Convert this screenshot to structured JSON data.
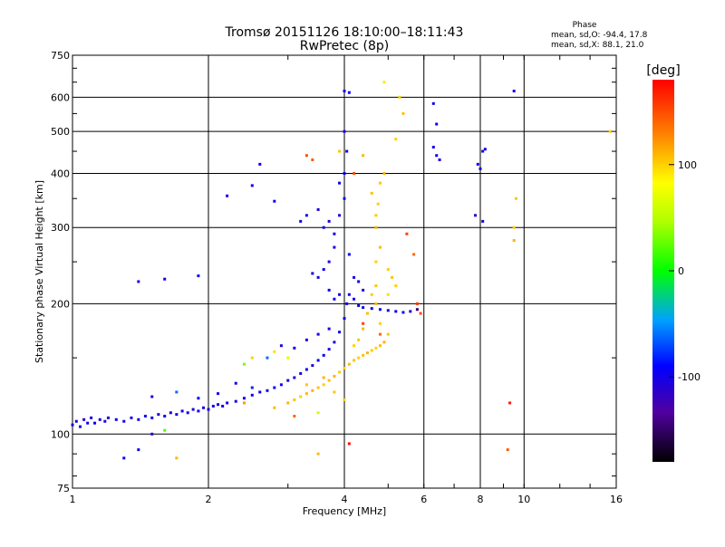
{
  "chart_data": {
    "type": "scatter",
    "title": "Tromsø 20151126 18:10:00–18:11:43",
    "subtitle": "RwPretec (8p)",
    "xlabel": "Frequency [MHz]",
    "ylabel": "Stationary phase Virtual Height [km]",
    "x_scale": "log",
    "y_scale": "log",
    "xlim": [
      1,
      16
    ],
    "ylim": [
      75,
      750
    ],
    "x_ticks": [
      1,
      2,
      4,
      6,
      8,
      10,
      16
    ],
    "y_ticks": [
      75,
      100,
      200,
      300,
      400,
      500,
      600,
      750
    ],
    "grid": true,
    "stats": {
      "title": "Phase",
      "line_o": "mean, sd,O: -94.4, 17.8",
      "line_x": "mean, sd,X:  88.1, 21.0"
    },
    "colorbar": {
      "label": "[deg]",
      "range": [
        -180,
        180
      ],
      "ticks": [
        -100,
        0,
        100
      ]
    },
    "series": [
      {
        "points": [
          [
            1.0,
            105,
            -100
          ],
          [
            1.02,
            107,
            -95
          ],
          [
            1.04,
            104,
            -105
          ],
          [
            1.06,
            108,
            -110
          ],
          [
            1.08,
            106,
            -98
          ],
          [
            1.1,
            109,
            -102
          ],
          [
            1.12,
            106,
            -92
          ],
          [
            1.15,
            108,
            -100
          ],
          [
            1.18,
            107,
            -105
          ],
          [
            1.2,
            109,
            -110
          ],
          [
            1.25,
            108,
            -95
          ],
          [
            1.3,
            107,
            -100
          ],
          [
            1.35,
            109,
            -103
          ],
          [
            1.4,
            108,
            -98
          ],
          [
            1.45,
            110,
            -101
          ],
          [
            1.5,
            109,
            -96
          ],
          [
            1.55,
            111,
            -105
          ],
          [
            1.6,
            110,
            -99
          ],
          [
            1.65,
            112,
            -104
          ],
          [
            1.7,
            111,
            -100
          ],
          [
            1.75,
            113,
            -97
          ],
          [
            1.8,
            112,
            -102
          ],
          [
            1.85,
            114,
            -106
          ],
          [
            1.9,
            113,
            -99
          ],
          [
            1.95,
            115,
            -101
          ],
          [
            2.0,
            114,
            -103
          ],
          [
            2.05,
            116,
            -98
          ],
          [
            2.1,
            117,
            -104
          ],
          [
            2.15,
            116,
            -96
          ],
          [
            2.2,
            118,
            -100
          ],
          [
            2.3,
            119,
            -102
          ],
          [
            2.4,
            121,
            -99
          ],
          [
            2.5,
            123,
            -104
          ],
          [
            2.6,
            125,
            -97
          ],
          [
            2.7,
            126,
            -101
          ],
          [
            2.8,
            128,
            -95
          ],
          [
            2.9,
            130,
            -103
          ],
          [
            3.0,
            133,
            -99
          ],
          [
            3.1,
            135,
            -102
          ],
          [
            3.2,
            138,
            -100
          ],
          [
            3.3,
            141,
            -98
          ],
          [
            3.4,
            144,
            -104
          ],
          [
            3.5,
            148,
            -101
          ],
          [
            3.6,
            152,
            -97
          ],
          [
            3.7,
            157,
            -103
          ],
          [
            3.8,
            163,
            -99
          ],
          [
            3.9,
            172,
            -102
          ],
          [
            4.0,
            185,
            -100
          ],
          [
            4.05,
            200,
            -96
          ],
          [
            4.1,
            210,
            -105
          ],
          [
            4.2,
            205,
            -100
          ],
          [
            4.3,
            198,
            -98
          ],
          [
            4.4,
            196,
            -102
          ],
          [
            4.6,
            195,
            -99
          ],
          [
            4.8,
            194,
            -101
          ],
          [
            5.0,
            193,
            -104
          ],
          [
            5.2,
            192,
            -100
          ],
          [
            5.4,
            191,
            -97
          ],
          [
            5.6,
            192,
            -110
          ],
          [
            5.8,
            194,
            -150
          ],
          [
            1.5,
            122,
            -110
          ],
          [
            1.7,
            125,
            -60
          ],
          [
            1.9,
            121,
            -90
          ],
          [
            2.1,
            124,
            -100
          ],
          [
            2.3,
            131,
            -95
          ],
          [
            2.5,
            128,
            -80
          ],
          [
            2.7,
            150,
            -60
          ],
          [
            2.9,
            160,
            -105
          ],
          [
            3.1,
            158,
            -100
          ],
          [
            3.3,
            165,
            -98
          ],
          [
            3.5,
            170,
            -102
          ],
          [
            3.7,
            175,
            -99
          ],
          [
            3.6,
            300,
            -100
          ],
          [
            3.7,
            310,
            -105
          ],
          [
            3.8,
            290,
            -98
          ],
          [
            3.9,
            320,
            -110
          ],
          [
            4.0,
            350,
            -100
          ],
          [
            4.0,
            400,
            -95
          ],
          [
            4.05,
            450,
            -103
          ],
          [
            4.0,
            500,
            -101
          ],
          [
            3.9,
            380,
            -99
          ],
          [
            3.8,
            270,
            -100
          ],
          [
            3.7,
            250,
            -104
          ],
          [
            3.6,
            240,
            -97
          ],
          [
            3.5,
            230,
            -100
          ],
          [
            3.4,
            235,
            -102
          ],
          [
            3.3,
            320,
            -99
          ],
          [
            3.5,
            330,
            -105
          ],
          [
            3.2,
            310,
            -100
          ],
          [
            4.1,
            260,
            -96
          ],
          [
            4.2,
            230,
            -100
          ],
          [
            4.3,
            225,
            -98
          ],
          [
            4.4,
            215,
            -103
          ],
          [
            3.9,
            210,
            -100
          ],
          [
            3.8,
            205,
            -99
          ],
          [
            3.7,
            215,
            -101
          ],
          [
            6.3,
            460,
            -100
          ],
          [
            6.4,
            440,
            -96
          ],
          [
            6.5,
            430,
            -104
          ],
          [
            6.3,
            580,
            -100
          ],
          [
            6.4,
            520,
            -98
          ],
          [
            8.0,
            410,
            -100
          ],
          [
            8.1,
            450,
            -103
          ],
          [
            8.2,
            455,
            -97
          ],
          [
            7.9,
            420,
            -99
          ],
          [
            7.8,
            320,
            -110
          ],
          [
            8.1,
            310,
            -100
          ],
          [
            9.5,
            620,
            -102
          ],
          [
            4.0,
            620,
            -100
          ],
          [
            4.1,
            615,
            -90
          ],
          [
            1.4,
            225,
            -105
          ],
          [
            1.6,
            228,
            -98
          ],
          [
            1.9,
            232,
            -100
          ],
          [
            2.2,
            355,
            -101
          ],
          [
            2.5,
            375,
            -99
          ],
          [
            2.8,
            345,
            -96
          ],
          [
            1.3,
            88,
            -100
          ],
          [
            1.4,
            92,
            -98
          ],
          [
            1.5,
            100,
            -110
          ],
          [
            2.6,
            420,
            -100
          ]
        ]
      },
      {
        "points": [
          [
            3.0,
            118,
            110
          ],
          [
            3.1,
            120,
            105
          ],
          [
            3.2,
            122,
            100
          ],
          [
            3.3,
            124,
            108
          ],
          [
            3.4,
            126,
            112
          ],
          [
            3.5,
            128,
            104
          ],
          [
            3.6,
            130,
            100
          ],
          [
            3.7,
            133,
            106
          ],
          [
            3.8,
            136,
            110
          ],
          [
            3.9,
            139,
            102
          ],
          [
            4.0,
            142,
            100
          ],
          [
            4.1,
            145,
            108
          ],
          [
            4.2,
            148,
            104
          ],
          [
            4.3,
            150,
            100
          ],
          [
            4.4,
            152,
            106
          ],
          [
            4.5,
            154,
            110
          ],
          [
            4.6,
            156,
            102
          ],
          [
            4.7,
            158,
            100
          ],
          [
            4.8,
            160,
            108
          ],
          [
            4.9,
            163,
            112
          ],
          [
            5.0,
            170,
            104
          ],
          [
            4.8,
            180,
            100
          ],
          [
            4.7,
            200,
            110
          ],
          [
            4.7,
            220,
            104
          ],
          [
            4.7,
            250,
            100
          ],
          [
            4.8,
            270,
            108
          ],
          [
            4.7,
            300,
            112
          ],
          [
            4.7,
            320,
            102
          ],
          [
            4.75,
            340,
            100
          ],
          [
            4.6,
            360,
            106
          ],
          [
            4.8,
            380,
            104
          ],
          [
            4.9,
            400,
            110
          ],
          [
            5.0,
            240,
            100
          ],
          [
            5.1,
            230,
            105
          ],
          [
            5.2,
            220,
            102
          ],
          [
            5.0,
            210,
            95
          ],
          [
            5.2,
            480,
            100
          ],
          [
            5.4,
            550,
            106
          ],
          [
            4.9,
            650,
            90
          ],
          [
            5.3,
            600,
            100
          ],
          [
            4.6,
            210,
            102
          ],
          [
            4.5,
            190,
            108
          ],
          [
            4.4,
            175,
            110
          ],
          [
            4.3,
            165,
            104
          ],
          [
            4.2,
            160,
            100
          ],
          [
            2.5,
            150,
            100
          ],
          [
            2.8,
            155,
            95
          ],
          [
            3.3,
            130,
            105
          ],
          [
            3.6,
            135,
            112
          ],
          [
            3.8,
            125,
            104
          ],
          [
            4.0,
            120,
            100
          ],
          [
            2.8,
            115,
            108
          ],
          [
            4.4,
            440,
            110
          ],
          [
            3.9,
            450,
            104
          ],
          [
            9.5,
            300,
            100
          ],
          [
            9.5,
            280,
            110
          ],
          [
            9.6,
            350,
            104
          ],
          [
            15.5,
            500,
            100
          ],
          [
            1.7,
            88,
            110
          ],
          [
            3.5,
            90,
            108
          ]
        ]
      },
      {
        "points": [
          [
            3.3,
            440,
            150
          ],
          [
            3.4,
            430,
            145
          ],
          [
            4.2,
            400,
            150
          ],
          [
            5.5,
            290,
            155
          ],
          [
            5.7,
            260,
            140
          ],
          [
            5.8,
            200,
            160
          ],
          [
            5.9,
            190,
            150
          ],
          [
            9.3,
            118,
            170
          ],
          [
            9.2,
            92,
            145
          ],
          [
            4.4,
            180,
            155
          ],
          [
            4.1,
            95,
            175
          ],
          [
            3.5,
            112,
            60
          ],
          [
            3.1,
            110,
            140
          ],
          [
            2.4,
            118,
            120
          ],
          [
            4.8,
            170,
            140
          ],
          [
            3.0,
            150,
            70
          ],
          [
            1.6,
            102,
            20
          ],
          [
            2.4,
            145,
            30
          ]
        ]
      }
    ]
  }
}
